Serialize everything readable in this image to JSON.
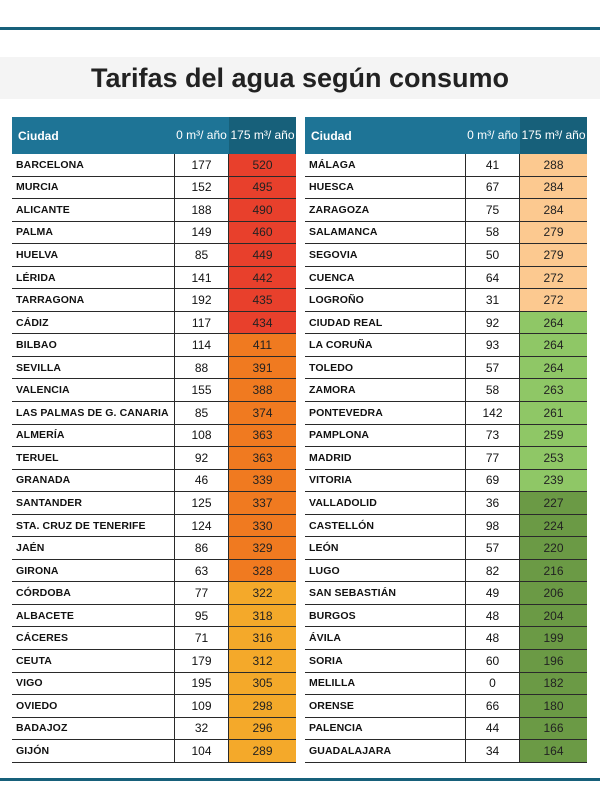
{
  "title": "Tarifas del agua según consumo",
  "headers": {
    "city": "Ciudad",
    "v0": "0 m³/ año",
    "v175": "175 m³/ año"
  },
  "colors": {
    "red": "#e8402c",
    "orange": "#f07a20",
    "amber": "#f4a92a",
    "peach": "#fcc990",
    "light_green": "#8fc766",
    "dark_green": "#6b9a45",
    "header_blue": "#1e7496",
    "header_dark": "#17607a"
  },
  "left_table": [
    {
      "city": "BARCELONA",
      "v0": "177",
      "v175": "520",
      "color": "#e8402c"
    },
    {
      "city": "MURCIA",
      "v0": "152",
      "v175": "495",
      "color": "#e8402c"
    },
    {
      "city": "ALICANTE",
      "v0": "188",
      "v175": "490",
      "color": "#e8402c"
    },
    {
      "city": "PALMA",
      "v0": "149",
      "v175": "460",
      "color": "#e8402c"
    },
    {
      "city": "HUELVA",
      "v0": "85",
      "v175": "449",
      "color": "#e8402c"
    },
    {
      "city": "LÉRIDA",
      "v0": "141",
      "v175": "442",
      "color": "#e8402c"
    },
    {
      "city": "TARRAGONA",
      "v0": "192",
      "v175": "435",
      "color": "#e8402c"
    },
    {
      "city": "CÁDIZ",
      "v0": "117",
      "v175": "434",
      "color": "#e8402c"
    },
    {
      "city": "BILBAO",
      "v0": "114",
      "v175": "411",
      "color": "#f07a20"
    },
    {
      "city": "SEVILLA",
      "v0": "88",
      "v175": "391",
      "color": "#f07a20"
    },
    {
      "city": "VALENCIA",
      "v0": "155",
      "v175": "388",
      "color": "#f07a20"
    },
    {
      "city": "LAS PALMAS DE G. CANARIA",
      "v0": "85",
      "v175": "374",
      "color": "#f07a20"
    },
    {
      "city": "ALMERÍA",
      "v0": "108",
      "v175": "363",
      "color": "#f07a20"
    },
    {
      "city": "TERUEL",
      "v0": "92",
      "v175": "363",
      "color": "#f07a20"
    },
    {
      "city": "GRANADA",
      "v0": "46",
      "v175": "339",
      "color": "#f07a20"
    },
    {
      "city": "SANTANDER",
      "v0": "125",
      "v175": "337",
      "color": "#f07a20"
    },
    {
      "city": "STA. CRUZ DE TENERIFE",
      "v0": "124",
      "v175": "330",
      "color": "#f07a20"
    },
    {
      "city": "JAÉN",
      "v0": "86",
      "v175": "329",
      "color": "#f07a20"
    },
    {
      "city": "GIRONA",
      "v0": "63",
      "v175": "328",
      "color": "#f07a20"
    },
    {
      "city": "CÓRDOBA",
      "v0": "77",
      "v175": "322",
      "color": "#f4a92a"
    },
    {
      "city": "ALBACETE",
      "v0": "95",
      "v175": "318",
      "color": "#f4a92a"
    },
    {
      "city": "CÁCERES",
      "v0": "71",
      "v175": "316",
      "color": "#f4a92a"
    },
    {
      "city": "CEUTA",
      "v0": "179",
      "v175": "312",
      "color": "#f4a92a"
    },
    {
      "city": "VIGO",
      "v0": "195",
      "v175": "305",
      "color": "#f4a92a"
    },
    {
      "city": "OVIEDO",
      "v0": "109",
      "v175": "298",
      "color": "#f4a92a"
    },
    {
      "city": "BADAJOZ",
      "v0": "32",
      "v175": "296",
      "color": "#f4a92a"
    },
    {
      "city": "GIJÓN",
      "v0": "104",
      "v175": "289",
      "color": "#f4a92a"
    }
  ],
  "right_table": [
    {
      "city": "MÁLAGA",
      "v0": "41",
      "v175": "288",
      "color": "#fcc990"
    },
    {
      "city": "HUESCA",
      "v0": "67",
      "v175": "284",
      "color": "#fcc990"
    },
    {
      "city": "ZARAGOZA",
      "v0": "75",
      "v175": "284",
      "color": "#fcc990"
    },
    {
      "city": "SALAMANCA",
      "v0": "58",
      "v175": "279",
      "color": "#fcc990"
    },
    {
      "city": "SEGOVIA",
      "v0": "50",
      "v175": "279",
      "color": "#fcc990"
    },
    {
      "city": "CUENCA",
      "v0": "64",
      "v175": "272",
      "color": "#fcc990"
    },
    {
      "city": "LOGROÑO",
      "v0": "31",
      "v175": "272",
      "color": "#fcc990"
    },
    {
      "city": "CIUDAD REAL",
      "v0": "92",
      "v175": "264",
      "color": "#8fc766"
    },
    {
      "city": "LA CORUÑA",
      "v0": "93",
      "v175": "264",
      "color": "#8fc766"
    },
    {
      "city": "TOLEDO",
      "v0": "57",
      "v175": "264",
      "color": "#8fc766"
    },
    {
      "city": "ZAMORA",
      "v0": "58",
      "v175": "263",
      "color": "#8fc766"
    },
    {
      "city": "PONTEVEDRA",
      "v0": "142",
      "v175": "261",
      "color": "#8fc766"
    },
    {
      "city": "PAMPLONA",
      "v0": "73",
      "v175": "259",
      "color": "#8fc766"
    },
    {
      "city": "MADRID",
      "v0": "77",
      "v175": "253",
      "color": "#8fc766"
    },
    {
      "city": "VITORIA",
      "v0": "69",
      "v175": "239",
      "color": "#8fc766"
    },
    {
      "city": "VALLADOLID",
      "v0": "36",
      "v175": "227",
      "color": "#6b9a45"
    },
    {
      "city": "CASTELLÓN",
      "v0": "98",
      "v175": "224",
      "color": "#6b9a45"
    },
    {
      "city": "LEÓN",
      "v0": "57",
      "v175": "220",
      "color": "#6b9a45"
    },
    {
      "city": "LUGO",
      "v0": "82",
      "v175": "216",
      "color": "#6b9a45"
    },
    {
      "city": "SAN SEBASTIÁN",
      "v0": "49",
      "v175": "206",
      "color": "#6b9a45"
    },
    {
      "city": "BURGOS",
      "v0": "48",
      "v175": "204",
      "color": "#6b9a45"
    },
    {
      "city": "ÁVILA",
      "v0": "48",
      "v175": "199",
      "color": "#6b9a45"
    },
    {
      "city": "SORIA",
      "v0": "60",
      "v175": "196",
      "color": "#6b9a45"
    },
    {
      "city": "MELILLA",
      "v0": "0",
      "v175": "182",
      "color": "#6b9a45"
    },
    {
      "city": "ORENSE",
      "v0": "66",
      "v175": "180",
      "color": "#6b9a45"
    },
    {
      "city": "PALENCIA",
      "v0": "44",
      "v175": "166",
      "color": "#6b9a45"
    },
    {
      "city": "GUADALAJARA",
      "v0": "34",
      "v175": "164",
      "color": "#6b9a45"
    }
  ]
}
